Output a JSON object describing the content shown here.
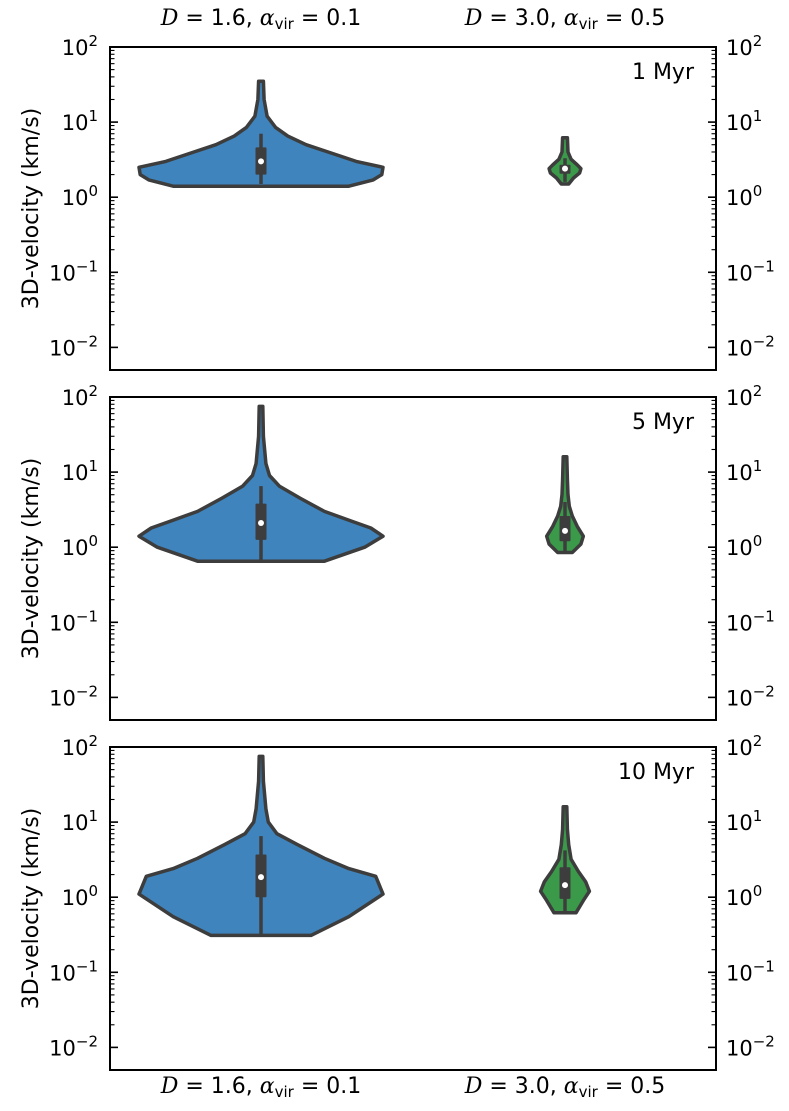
{
  "chart_data": {
    "type": "violin",
    "yscale": "log",
    "ylabel": "3D-velocity (km/s)",
    "ylim": [
      0.005,
      100
    ],
    "yticks": [
      {
        "base": "10",
        "exp": "2"
      },
      {
        "base": "10",
        "exp": "1"
      },
      {
        "base": "10",
        "exp": "0"
      },
      {
        "base": "10",
        "exp": "−1"
      },
      {
        "base": "10",
        "exp": "−2"
      }
    ],
    "categories": [
      {
        "name": "D",
        "d": "1.6",
        "sub": "vir",
        "alpha": "0.1",
        "color": "#3f84bc"
      },
      {
        "name": "D",
        "d": "3.0",
        "sub": "vir",
        "alpha": "0.5",
        "color": "#3b9a4a"
      }
    ],
    "panels": [
      {
        "title": "1 Myr",
        "violins": [
          {
            "category": 0,
            "min": 1.4,
            "max": 35,
            "median": 3.0,
            "q1": 2.0,
            "q3": 4.6,
            "whisker_low": 1.5,
            "whisker_high": 7.0,
            "profile": [
              [
                1.4,
                0.72
              ],
              [
                1.7,
                0.92
              ],
              [
                2.0,
                0.99
              ],
              [
                2.5,
                1.0
              ],
              [
                3.0,
                0.78
              ],
              [
                4.0,
                0.55
              ],
              [
                5.0,
                0.37
              ],
              [
                6.5,
                0.22
              ],
              [
                8.5,
                0.12
              ],
              [
                12,
                0.05
              ],
              [
                20,
                0.025
              ],
              [
                35,
                0.02
              ]
            ]
          },
          {
            "category": 1,
            "min": 1.5,
            "max": 6.2,
            "median": 2.4,
            "q1": 2.05,
            "q3": 2.7,
            "whisker_low": 1.6,
            "whisker_high": 3.3,
            "profile": [
              [
                1.5,
                0.03
              ],
              [
                1.8,
                0.07
              ],
              [
                2.1,
                0.12
              ],
              [
                2.4,
                0.13
              ],
              [
                2.7,
                0.1
              ],
              [
                3.2,
                0.05
              ],
              [
                4.0,
                0.025
              ],
              [
                6.2,
                0.02
              ]
            ]
          }
        ]
      },
      {
        "title": "5 Myr",
        "violins": [
          {
            "category": 0,
            "min": 0.65,
            "max": 75,
            "median": 2.1,
            "q1": 1.25,
            "q3": 3.8,
            "whisker_low": 0.65,
            "whisker_high": 6.5,
            "profile": [
              [
                0.65,
                0.52
              ],
              [
                1.0,
                0.85
              ],
              [
                1.4,
                1.0
              ],
              [
                1.8,
                0.9
              ],
              [
                2.2,
                0.75
              ],
              [
                3.0,
                0.52
              ],
              [
                4.5,
                0.32
              ],
              [
                6.5,
                0.15
              ],
              [
                9,
                0.07
              ],
              [
                13,
                0.04
              ],
              [
                30,
                0.02
              ],
              [
                75,
                0.015
              ]
            ]
          },
          {
            "category": 1,
            "min": 0.85,
            "max": 16,
            "median": 1.65,
            "q1": 1.2,
            "q3": 2.6,
            "whisker_low": 0.85,
            "whisker_high": 4.0,
            "profile": [
              [
                0.85,
                0.06
              ],
              [
                1.1,
                0.13
              ],
              [
                1.4,
                0.15
              ],
              [
                1.9,
                0.1
              ],
              [
                2.6,
                0.06
              ],
              [
                3.5,
                0.035
              ],
              [
                5,
                0.025
              ],
              [
                8,
                0.02
              ],
              [
                16,
                0.015
              ]
            ]
          }
        ]
      },
      {
        "title": "10 Myr",
        "violins": [
          {
            "category": 0,
            "min": 0.31,
            "max": 75,
            "median": 1.85,
            "q1": 1.0,
            "q3": 3.7,
            "whisker_low": 0.31,
            "whisker_high": 6.5,
            "profile": [
              [
                0.31,
                0.41
              ],
              [
                0.55,
                0.72
              ],
              [
                1.1,
                1.0
              ],
              [
                1.9,
                0.94
              ],
              [
                2.4,
                0.72
              ],
              [
                3.3,
                0.52
              ],
              [
                5,
                0.3
              ],
              [
                7,
                0.13
              ],
              [
                10,
                0.06
              ],
              [
                15,
                0.04
              ],
              [
                35,
                0.02
              ],
              [
                75,
                0.015
              ]
            ]
          },
          {
            "category": 1,
            "min": 0.62,
            "max": 16,
            "median": 1.45,
            "q1": 0.95,
            "q3": 2.5,
            "whisker_low": 0.62,
            "whisker_high": 4.2,
            "profile": [
              [
                0.62,
                0.09
              ],
              [
                0.9,
                0.15
              ],
              [
                1.2,
                0.2
              ],
              [
                1.6,
                0.17
              ],
              [
                2.2,
                0.11
              ],
              [
                3.2,
                0.05
              ],
              [
                5,
                0.03
              ],
              [
                8,
                0.02
              ],
              [
                16,
                0.015
              ]
            ]
          }
        ]
      }
    ]
  }
}
